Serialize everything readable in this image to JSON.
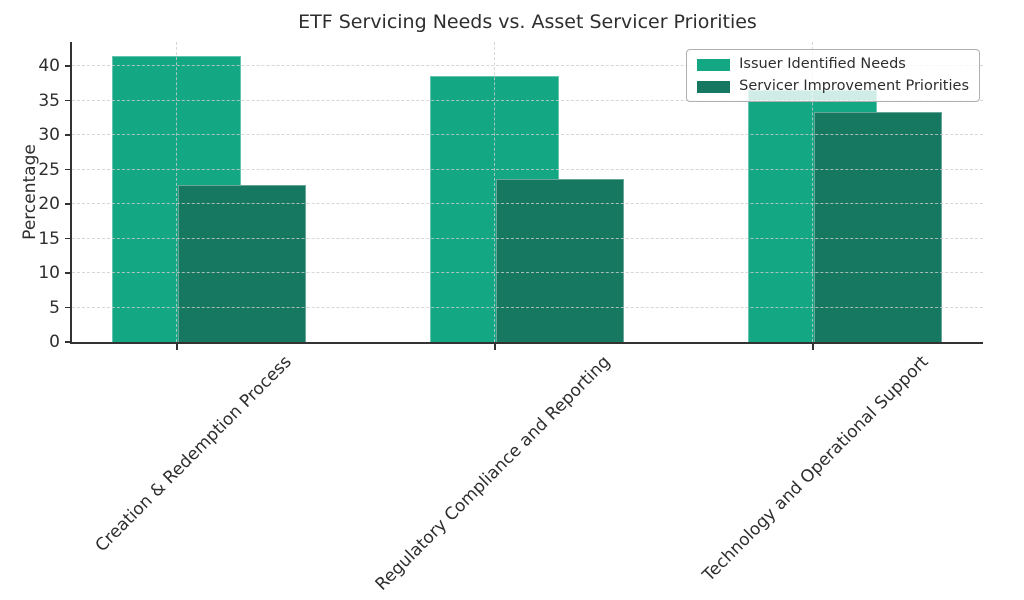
{
  "chart_data": {
    "type": "bar",
    "title": "ETF Servicing Needs vs. Asset Servicer Priorities",
    "xlabel": "",
    "ylabel": "Percentage",
    "categories": [
      "Creation & Redemption Process",
      "Regulatory Compliance and Reporting",
      "Technology and Operational Support"
    ],
    "series": [
      {
        "name": "Issuer Identified Needs",
        "color": "#13a784",
        "values": [
          41.4,
          38.5,
          36.5
        ]
      },
      {
        "name": "Servicer Improvement Priorities",
        "color": "#177862",
        "values": [
          22.8,
          23.7,
          33.3
        ]
      }
    ],
    "yticks": [
      0,
      5,
      10,
      15,
      20,
      25,
      30,
      35,
      40
    ],
    "ylim": [
      0,
      43.5
    ],
    "grid": "dashed horizontal and vertical gridlines drawn over bars",
    "legend_position": "upper right",
    "bar_style": "second series offset right by half bar width, overlapping first"
  }
}
